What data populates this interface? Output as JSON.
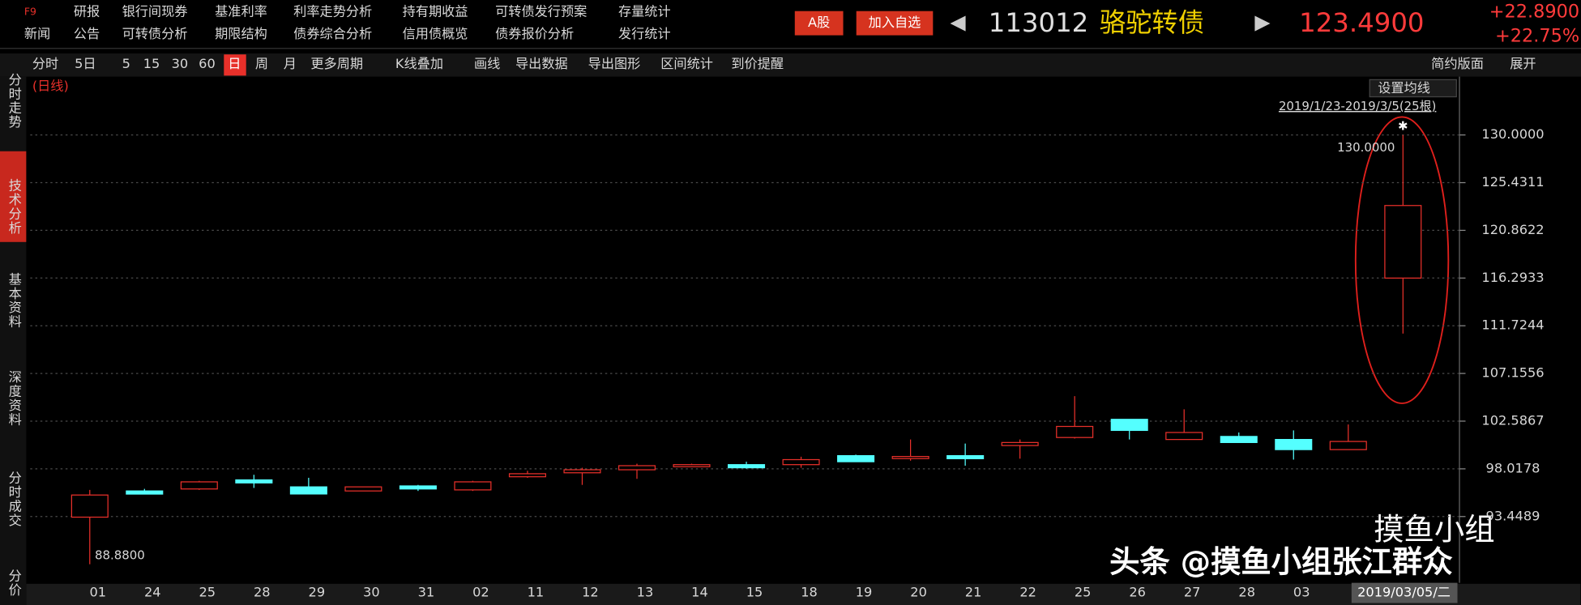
{
  "header": {
    "row1": [
      "F9",
      "研报",
      "银行间现券",
      "基准利率",
      "利率走势分析",
      "持有期收益",
      "可转债发行预案",
      "存量统计"
    ],
    "row2": [
      "新闻",
      "公告",
      "可转债分析",
      "期限结构",
      "债券综合分析",
      "信用债概览",
      "债券报价分析",
      "发行统计"
    ]
  },
  "buttons": [
    "A股",
    "加入自选"
  ],
  "security": {
    "code": "113012",
    "name": "骆驼转债",
    "price": "123.4900",
    "change": "+22.8900",
    "change_pct": "+22.75%"
  },
  "toolbar": {
    "items": [
      "分时",
      "5日",
      "5",
      "15",
      "30",
      "60",
      "日",
      "周",
      "月",
      "更多周期",
      "K线叠加",
      "画线",
      "导出数据",
      "导出图形",
      "区间统计",
      "到价提醒"
    ],
    "right": [
      "简约版面",
      "展开"
    ]
  },
  "side_tabs": [
    "分时走势",
    "技术分析",
    "基本资料",
    "深度资料",
    "分时成交",
    "分价"
  ],
  "watermark": [
    "头条 @摸鱼小组张江群众",
    "摸鱼小组"
  ],
  "chart_data": {
    "type": "candlestick",
    "period_label": "(日线)",
    "ma_button": "设置均线",
    "range_text": "2019/1/23-2019/3/5(25根)",
    "high_label": "130.0000",
    "low_label": "88.8800",
    "categories": [
      "01",
      "24",
      "25",
      "28",
      "29",
      "30",
      "31",
      "02",
      "11",
      "12",
      "13",
      "14",
      "15",
      "18",
      "19",
      "20",
      "21",
      "22",
      "25",
      "26",
      "27",
      "28",
      "03",
      null,
      "2019/03/05/二"
    ],
    "open": [
      93.39,
      95.9,
      96.09,
      96.96,
      96.29,
      95.9,
      96.38,
      96.0,
      97.26,
      97.64,
      97.93,
      98.22,
      98.42,
      98.42,
      99.28,
      99.0,
      99.28,
      100.25,
      101.02,
      102.76,
      100.83,
      101.12,
      100.83,
      99.86,
      116.29
    ],
    "close": [
      95.51,
      95.6,
      96.77,
      96.67,
      95.61,
      96.29,
      96.09,
      96.77,
      97.55,
      97.93,
      98.32,
      98.42,
      98.12,
      98.9,
      98.7,
      99.2,
      98.99,
      100.54,
      102.08,
      101.7,
      101.5,
      100.54,
      99.86,
      100.64,
      123.24
    ],
    "high": [
      96.0,
      96.1,
      96.87,
      97.45,
      97.16,
      96.29,
      96.48,
      96.87,
      97.83,
      98.12,
      98.51,
      98.51,
      98.7,
      99.18,
      99.38,
      100.83,
      100.44,
      100.83,
      104.98,
      102.76,
      103.72,
      101.5,
      101.7,
      102.27,
      130.0
    ],
    "low": [
      88.88,
      95.6,
      96.0,
      96.19,
      95.61,
      95.9,
      95.9,
      95.9,
      97.16,
      96.48,
      97.06,
      98.22,
      98.03,
      98.12,
      98.7,
      98.8,
      98.32,
      98.99,
      100.92,
      100.83,
      100.83,
      100.54,
      98.9,
      99.86,
      110.97
    ],
    "up_color": "#e8302a",
    "down_color": "#54ffff",
    "ylim": [
      87.1,
      135.2
    ],
    "yticks": [
      {
        "value": 93.4489,
        "label": "93.4489"
      },
      {
        "value": 98.0178,
        "label": "98.0178"
      },
      {
        "value": 102.5867,
        "label": "102.5867"
      },
      {
        "value": 107.1556,
        "label": "107.1556"
      },
      {
        "value": 111.7244,
        "label": "111.7244"
      },
      {
        "value": 116.2933,
        "label": "116.2933"
      },
      {
        "value": 120.8622,
        "label": "120.8622"
      },
      {
        "value": 125.4311,
        "label": "125.4311"
      },
      {
        "value": 130,
        "label": "130.0000"
      }
    ],
    "grid": true
  }
}
